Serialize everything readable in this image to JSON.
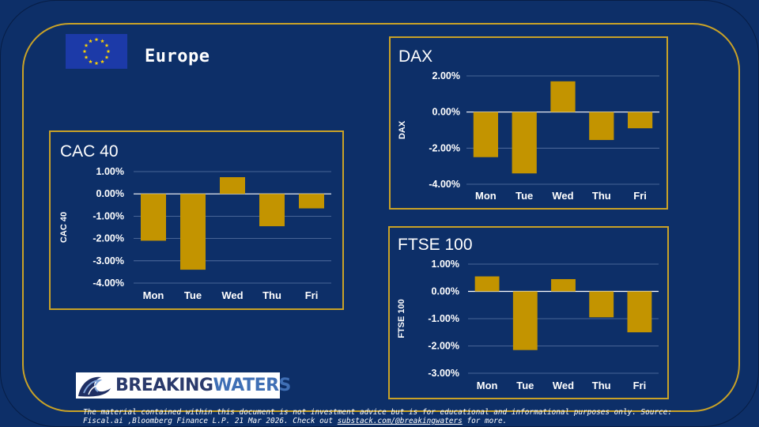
{
  "region": {
    "title": "Europe"
  },
  "brand": {
    "part1": "BREAKING",
    "part2": "WATERS"
  },
  "disclaimer": {
    "text": "The material contained within this document is not investment advice but is for educational and informational purposes only. Source: Fiscal.ai ,Bloomberg Finance L.P. 21 Mar 2026. Check out",
    "link": "substack.com/@breakingwaters",
    "suffix": "for more."
  },
  "colors": {
    "background": "#0d2f68",
    "accent": "#c9a227",
    "bar": "#c39400",
    "text": "#ffffff",
    "grid": "#5c77a6"
  },
  "chart_data": [
    {
      "id": "cac",
      "type": "bar",
      "title": "CAC 40",
      "ylabel": "CAC 40",
      "xlabel": "",
      "categories": [
        "Mon",
        "Tue",
        "Wed",
        "Thu",
        "Fri"
      ],
      "values": [
        -2.1,
        -3.4,
        0.75,
        -1.45,
        -0.65
      ],
      "ylim": [
        -4,
        1
      ],
      "yticks": [
        1,
        0,
        -1,
        -2,
        -3,
        -4
      ],
      "ytick_labels": [
        "1.00%",
        "0.00%",
        "-1.00%",
        "-2.00%",
        "-3.00%",
        "-4.00%"
      ],
      "grid": true,
      "legend": "none"
    },
    {
      "id": "dax",
      "type": "bar",
      "title": "DAX",
      "ylabel": "DAX",
      "xlabel": "",
      "categories": [
        "Mon",
        "Tue",
        "Wed",
        "Thu",
        "Fri"
      ],
      "values": [
        -2.5,
        -3.4,
        1.7,
        -1.55,
        -0.9
      ],
      "ylim": [
        -4,
        2
      ],
      "yticks": [
        2,
        0,
        -2,
        -4
      ],
      "ytick_labels": [
        "2.00%",
        "0.00%",
        "-2.00%",
        "-4.00%"
      ],
      "grid": true,
      "legend": "none"
    },
    {
      "id": "ftse",
      "type": "bar",
      "title": "FTSE 100",
      "ylabel": "FTSE 100",
      "xlabel": "",
      "categories": [
        "Mon",
        "Tue",
        "Wed",
        "Thu",
        "Fri"
      ],
      "values": [
        0.55,
        -2.15,
        0.45,
        -0.95,
        -1.5
      ],
      "ylim": [
        -3,
        1
      ],
      "yticks": [
        1,
        0,
        -1,
        -2,
        -3
      ],
      "ytick_labels": [
        "1.00%",
        "0.00%",
        "-1.00%",
        "-2.00%",
        "-3.00%"
      ],
      "grid": true,
      "legend": "none"
    }
  ]
}
